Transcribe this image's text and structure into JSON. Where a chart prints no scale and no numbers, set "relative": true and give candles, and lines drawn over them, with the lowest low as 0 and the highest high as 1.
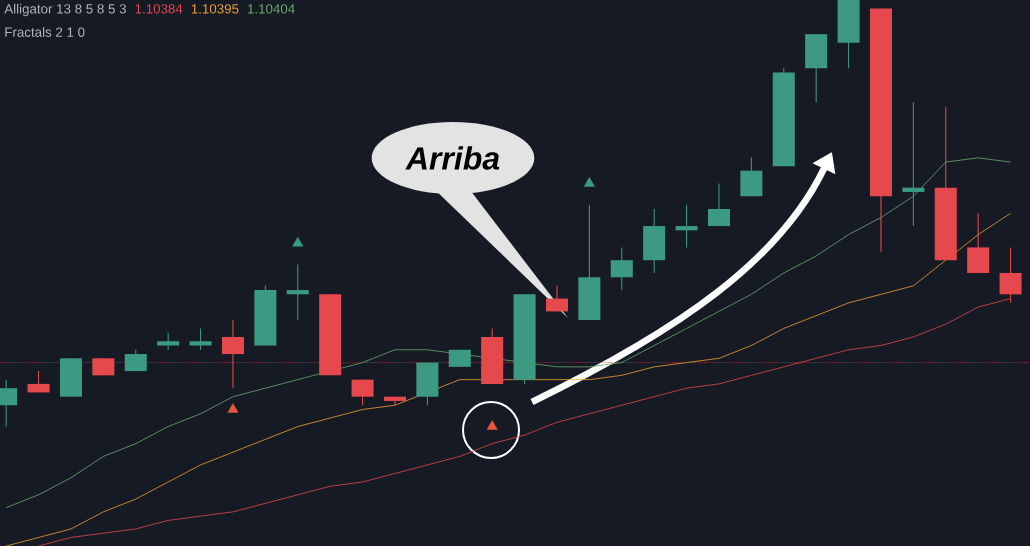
{
  "chart_data": {
    "type": "candlestick",
    "relative": true,
    "categories": [
      null,
      null,
      null,
      null,
      null,
      null,
      null,
      null,
      null,
      null,
      null,
      null,
      null,
      null,
      null,
      null,
      null,
      null,
      null,
      null,
      null,
      null,
      null,
      null,
      null,
      null,
      null,
      null,
      null,
      null,
      null,
      null
    ],
    "ohlc": [
      [
        0.05,
        0.11,
        0.0,
        0.09
      ],
      [
        0.1,
        0.13,
        0.08,
        0.08
      ],
      [
        0.07,
        0.16,
        0.07,
        0.16
      ],
      [
        0.16,
        0.16,
        0.12,
        0.12
      ],
      [
        0.13,
        0.18,
        0.13,
        0.17
      ],
      [
        0.19,
        0.22,
        0.18,
        0.2
      ],
      [
        0.19,
        0.23,
        0.18,
        0.2
      ],
      [
        0.21,
        0.25,
        0.09,
        0.17
      ],
      [
        0.19,
        0.33,
        0.19,
        0.32
      ],
      [
        0.31,
        0.38,
        0.25,
        0.32
      ],
      [
        0.31,
        0.31,
        0.12,
        0.12
      ],
      [
        0.11,
        0.11,
        0.05,
        0.07
      ],
      [
        0.07,
        0.07,
        0.05,
        0.06
      ],
      [
        0.07,
        0.15,
        0.05,
        0.15
      ],
      [
        0.14,
        0.18,
        0.14,
        0.18
      ],
      [
        0.21,
        0.23,
        0.1,
        0.1
      ],
      [
        0.11,
        0.31,
        0.1,
        0.31
      ],
      [
        0.3,
        0.33,
        0.27,
        0.27
      ],
      [
        0.25,
        0.52,
        0.25,
        0.35
      ],
      [
        0.35,
        0.42,
        0.32,
        0.39
      ],
      [
        0.39,
        0.51,
        0.36,
        0.47
      ],
      [
        0.46,
        0.52,
        0.42,
        0.47
      ],
      [
        0.47,
        0.57,
        0.47,
        0.51
      ],
      [
        0.54,
        0.63,
        0.54,
        0.6
      ],
      [
        0.61,
        0.84,
        0.61,
        0.83
      ],
      [
        0.84,
        0.92,
        0.76,
        0.92
      ],
      [
        0.9,
        1.0,
        0.84,
        1.0
      ],
      [
        0.98,
        0.98,
        0.41,
        0.54
      ],
      [
        0.55,
        0.76,
        0.47,
        0.56
      ],
      [
        0.56,
        0.75,
        0.39,
        0.39
      ],
      [
        0.42,
        0.5,
        0.36,
        0.36
      ],
      [
        0.36,
        0.42,
        0.29,
        0.31
      ]
    ],
    "series": [
      {
        "type": "line",
        "color": "#e5484d",
        "values": [
          null,
          -0.28,
          -0.26,
          -0.25,
          -0.24,
          -0.22,
          -0.21,
          -0.2,
          -0.18,
          -0.16,
          -0.14,
          -0.13,
          -0.11,
          -0.09,
          -0.07,
          -0.04,
          -0.02,
          0.01,
          0.03,
          0.05,
          0.07,
          0.09,
          0.1,
          0.12,
          0.14,
          0.16,
          0.18,
          0.19,
          0.21,
          0.24,
          0.28,
          0.3
        ]
      },
      {
        "type": "line",
        "color": "#f0a030",
        "values": [
          -0.28,
          -0.26,
          -0.24,
          -0.2,
          -0.17,
          -0.13,
          -0.09,
          -0.06,
          -0.03,
          0.0,
          0.02,
          0.04,
          0.05,
          null,
          0.11,
          null,
          null,
          0.11,
          0.11,
          0.12,
          0.14,
          0.15,
          0.16,
          0.19,
          0.23,
          0.26,
          0.29,
          0.31,
          0.33,
          0.39,
          0.45,
          0.5
        ]
      },
      {
        "type": "line",
        "color": "#6aaa6e",
        "values": [
          -0.19,
          -0.16,
          -0.12,
          -0.07,
          -0.04,
          0.0,
          0.03,
          0.07,
          0.09,
          0.11,
          null,
          0.15,
          0.18,
          0.18,
          null,
          null,
          null,
          0.14,
          0.14,
          0.15,
          0.19,
          0.23,
          0.27,
          0.31,
          0.36,
          0.4,
          0.45,
          0.49,
          0.54,
          0.62,
          0.63,
          0.62
        ]
      },
      {
        "type": "scatter",
        "marker": "triangle",
        "color": "#3d9a82",
        "values": [
          null,
          null,
          null,
          null,
          null,
          null,
          null,
          null,
          null,
          0.43,
          null,
          null,
          null,
          null,
          null,
          null,
          null,
          null,
          0.57,
          null,
          null,
          null,
          null,
          null,
          null,
          null,
          null,
          null,
          null,
          null,
          null,
          null
        ]
      },
      {
        "type": "scatter",
        "marker": "triangle",
        "color": "#e5573e",
        "values": [
          null,
          null,
          null,
          null,
          null,
          null,
          null,
          0.04,
          null,
          null,
          null,
          null,
          null,
          null,
          null,
          0.0,
          null,
          null,
          null,
          null,
          null,
          null,
          null,
          null,
          null,
          null,
          null,
          null,
          null,
          null,
          null,
          null
        ]
      }
    ],
    "ref_lines": [
      {
        "axis": "y",
        "value": 0.15,
        "color": "#e5484d",
        "line_style": "dotted"
      }
    ],
    "annotations": [
      "Alligator 13 8 5 8 5 3",
      "1.10384",
      "1.10395",
      "1.10404",
      "Fractals 2 1 0",
      "Arriba"
    ]
  }
}
